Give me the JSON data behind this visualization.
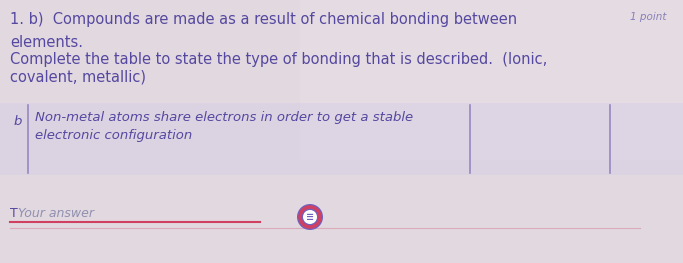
{
  "bg_color": "#e8dde0",
  "bg_color_top": "#ddd0d8",
  "bg_color_bottom": "#d8ccd4",
  "table_bg": "#ddd8e8",
  "title_line1": "1. b)  Compounds are made as a result of chemical bonding between",
  "title_line2": "elements.",
  "title_line3": "Complete the table to state the type of bonding that is described.  (Ionic,",
  "title_line4": "covalent, metallic)",
  "point_label": "1 point",
  "table_label": "b",
  "table_content_line1": "Non-metal atoms share electrons in order to get a stable",
  "table_content_line2": "electronic configuration",
  "answer_placeholder": "Your answer",
  "text_color": "#5548a0",
  "light_text_color": "#8880b8",
  "gray_text_color": "#9090b0",
  "line_color": "#d04060",
  "icon_main_color": "#7060c0",
  "icon_ring_color": "#d04060",
  "border_color": "#9888c0"
}
